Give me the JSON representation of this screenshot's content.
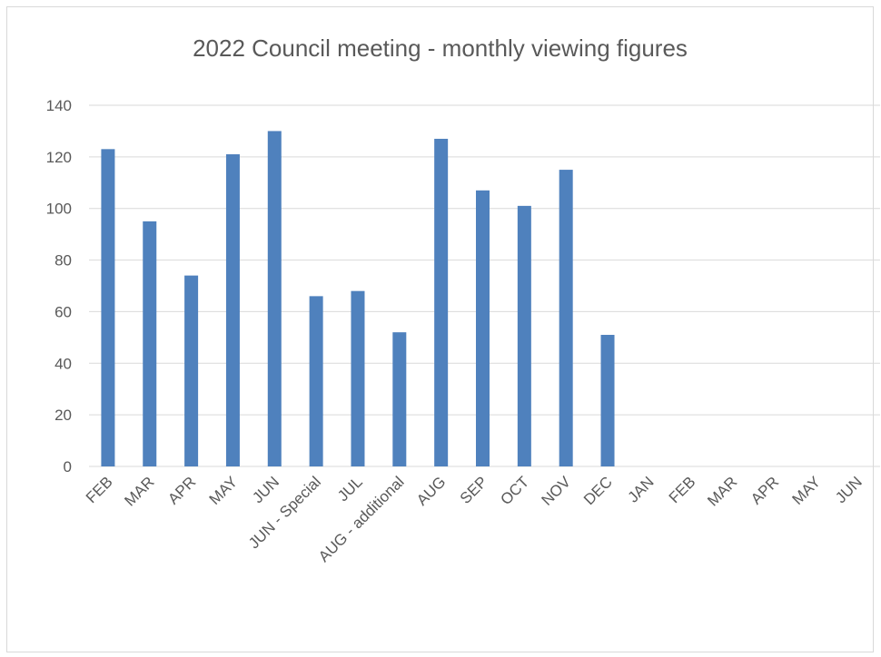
{
  "chart_data": {
    "type": "bar",
    "title": "2022 Council meeting - monthly viewing figures",
    "xlabel": "",
    "ylabel": "",
    "ylim": [
      0,
      140
    ],
    "yticks": [
      0,
      20,
      40,
      60,
      80,
      100,
      120,
      140
    ],
    "grid": true,
    "categories": [
      "FEB",
      "MAR",
      "APR",
      "MAY",
      "JUN",
      "JUN - Special",
      "JUL",
      "AUG - additional",
      "AUG",
      "SEP",
      "OCT",
      "NOV",
      "DEC",
      "JAN",
      "FEB",
      "MAR",
      "APR",
      "MAY",
      "JUN"
    ],
    "values": [
      123,
      95,
      74,
      121,
      130,
      66,
      68,
      52,
      127,
      107,
      101,
      115,
      51,
      null,
      null,
      null,
      null,
      null,
      null
    ],
    "bar_color": "#4f81bd",
    "grid_color": "#d9d9d9"
  }
}
